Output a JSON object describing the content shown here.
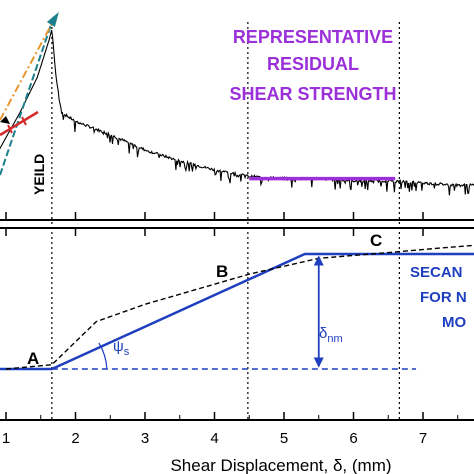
{
  "colors": {
    "axis": "#000000",
    "signal": "#000000",
    "residual": "#9b30d9",
    "model": "#1f3fbf",
    "tangent_teal": "#1d7f8c",
    "tangent_orange": "#e8962e",
    "tangent_red": "#d42a2a"
  },
  "chart_data": [
    {
      "type": "line",
      "title": "",
      "xlabel": "",
      "ylabel": "",
      "xlim": [
        0.6,
        8.0
      ],
      "grid": false,
      "annotations": {
        "yield": "YEILD",
        "residual_line1": "REPRESENTATIVE",
        "residual_line2": "RESIDUAL",
        "residual_line3": "SHEAR STRENGTH"
      },
      "series": [
        {
          "values_kind": "noisy shear-stress trace",
          "x": [
            0.9,
            1.2,
            1.45,
            1.62,
            1.66,
            1.72,
            1.8,
            2.0,
            2.5,
            3.0,
            3.5,
            4.0,
            4.5,
            5.0,
            5.5,
            6.0,
            6.5,
            7.0,
            7.5,
            8.0
          ],
          "y": [
            0.45,
            0.62,
            0.78,
            0.95,
            1.0,
            0.78,
            0.62,
            0.58,
            0.52,
            0.45,
            0.4,
            0.36,
            0.33,
            0.32,
            0.32,
            0.31,
            0.31,
            0.3,
            0.29,
            0.29
          ]
        },
        {
          "values_kind": "representative residual level",
          "x": [
            4.5,
            6.6
          ],
          "y": [
            0.32,
            0.32
          ]
        }
      ]
    },
    {
      "type": "line",
      "title": "",
      "xlabel": "Shear Displacement, δ, (mm)",
      "ylabel": "",
      "xlim": [
        0.6,
        8.0
      ],
      "ylim": [
        0,
        1
      ],
      "grid": false,
      "x_ticks": [
        "1",
        "2",
        "3",
        "4",
        "5",
        "6",
        "7"
      ],
      "points": {
        "A": "A",
        "B": "B",
        "C": "C"
      },
      "labels": {
        "psi": "ψ",
        "psi_sub": "s",
        "delta": "δ",
        "delta_sub": "nm",
        "secant_line1": "SECAN",
        "secant_line2": "FOR N",
        "secant_line3": "MO"
      },
      "series": [
        {
          "values_kind": "trilinear model",
          "x": [
            0.6,
            1.66,
            5.3,
            8.0
          ],
          "y": [
            0.0,
            0.0,
            0.8,
            0.8
          ]
        },
        {
          "values_kind": "smoothed data",
          "x": [
            1.0,
            1.66,
            2.3,
            3.0,
            4.5,
            5.5,
            6.5,
            7.2,
            8.0
          ],
          "y": [
            0.0,
            0.03,
            0.33,
            0.45,
            0.66,
            0.77,
            0.81,
            0.84,
            0.87
          ]
        },
        {
          "values_kind": "reference baseline",
          "x": [
            1.66,
            6.9
          ],
          "y": [
            0.0,
            0.0
          ]
        }
      ]
    }
  ]
}
